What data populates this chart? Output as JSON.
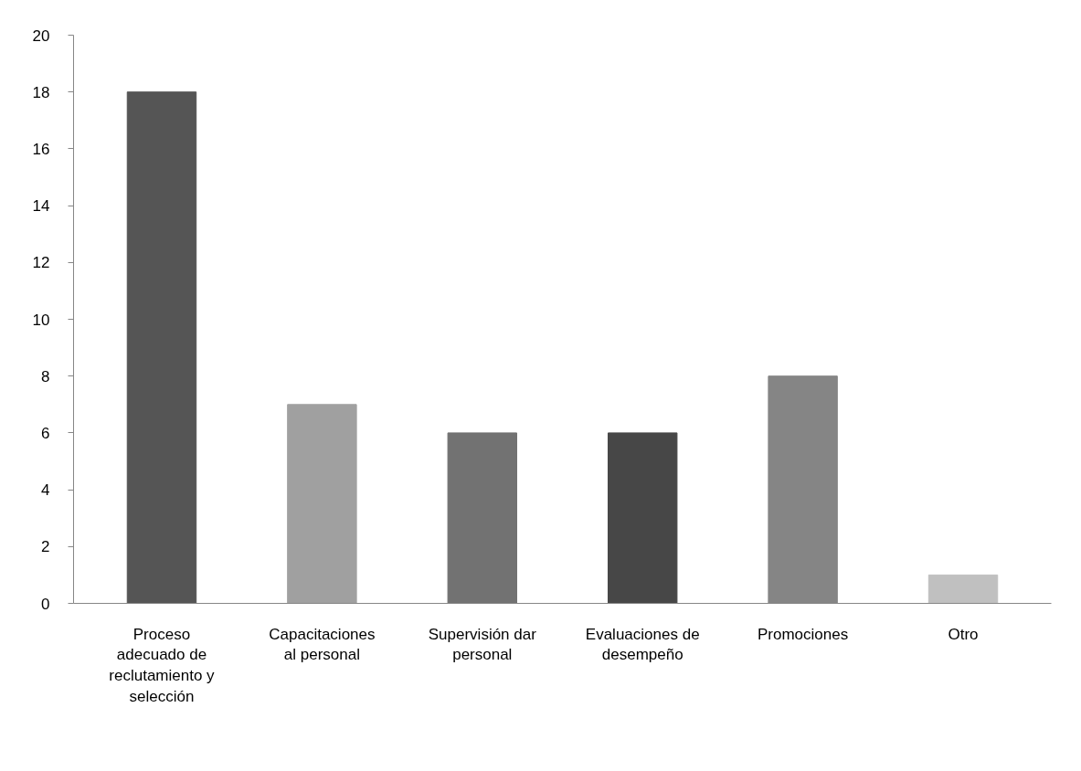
{
  "chart_data": {
    "type": "bar",
    "categories": [
      "Proceso adecuado de reclutamiento y selección",
      "Capacitaciones al personal",
      "Supervisión dar personal",
      "Evaluaciones de desempeño",
      "Promociones",
      "Otro"
    ],
    "values": [
      18,
      7,
      6,
      6,
      8,
      1
    ],
    "colors": [
      "#555555",
      "#a0a0a0",
      "#727272",
      "#474747",
      "#858585",
      "#c0c0c0"
    ],
    "ylim": [
      0,
      20
    ],
    "yticks": [
      0,
      2,
      4,
      6,
      8,
      10,
      12,
      14,
      16,
      18,
      20
    ],
    "grid": false
  }
}
